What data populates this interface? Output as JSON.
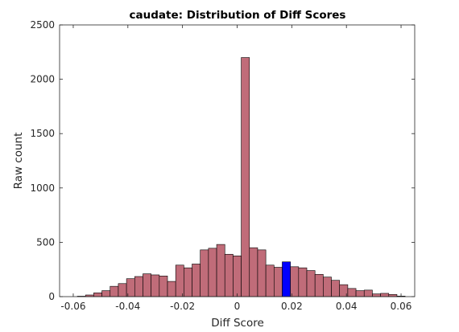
{
  "chart_data": {
    "type": "bar",
    "title": "caudate: Distribution of Diff Scores",
    "xlabel": "Diff Score",
    "ylabel": "Raw count",
    "xlim": [
      -0.065,
      0.065
    ],
    "ylim": [
      0,
      2500
    ],
    "xticks": [
      -0.06,
      -0.04,
      -0.02,
      0,
      0.02,
      0.04,
      0.06
    ],
    "xtick_labels": [
      "-0.06",
      "-0.04",
      "-0.02",
      "0",
      "0.02",
      "0.04",
      "0.06"
    ],
    "yticks": [
      0,
      500,
      1000,
      1500,
      2000,
      2500
    ],
    "ytick_labels": [
      "0",
      "500",
      "1000",
      "1500",
      "2000",
      "2500"
    ],
    "bin_width": 0.003,
    "bin_start": -0.0585,
    "counts": [
      4,
      15,
      35,
      55,
      95,
      120,
      165,
      185,
      210,
      200,
      190,
      140,
      290,
      265,
      300,
      430,
      445,
      480,
      390,
      375,
      2200,
      450,
      430,
      290,
      270,
      320,
      275,
      265,
      240,
      205,
      180,
      150,
      110,
      75,
      55,
      60,
      25,
      30,
      20,
      5
    ],
    "highlight_bin": 25,
    "colors": {
      "bar": "#c06c79",
      "highlight": "#0000ff",
      "edge": "#000000"
    },
    "grid": false
  }
}
